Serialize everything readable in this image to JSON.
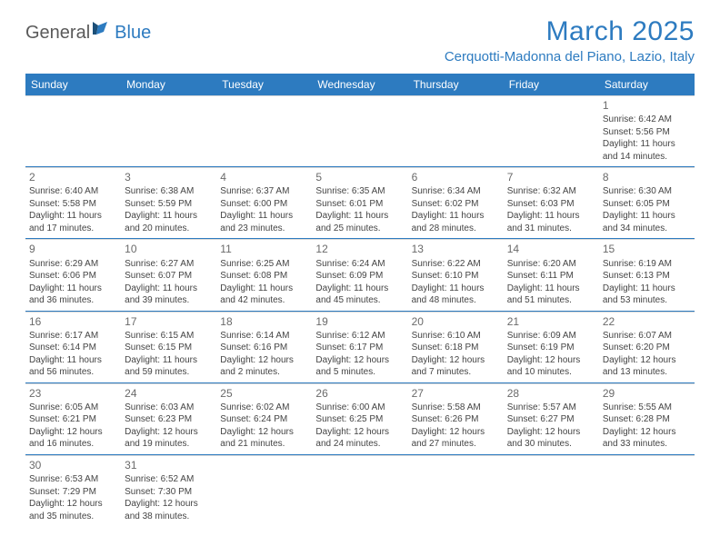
{
  "logo": {
    "part1": "General",
    "part2": "Blue"
  },
  "title": "March 2025",
  "location": "Cerquotti-Madonna del Piano, Lazio, Italy",
  "colors": {
    "brand": "#2d7bc0",
    "text": "#444444",
    "headerBg": "#2d7bc0",
    "headerText": "#ffffff",
    "cellBorder": "#d8d8d8"
  },
  "dayNames": [
    "Sunday",
    "Monday",
    "Tuesday",
    "Wednesday",
    "Thursday",
    "Friday",
    "Saturday"
  ],
  "weeks": [
    [
      null,
      null,
      null,
      null,
      null,
      null,
      {
        "n": "1",
        "sr": "Sunrise: 6:42 AM",
        "ss": "Sunset: 5:56 PM",
        "d1": "Daylight: 11 hours",
        "d2": "and 14 minutes."
      }
    ],
    [
      {
        "n": "2",
        "sr": "Sunrise: 6:40 AM",
        "ss": "Sunset: 5:58 PM",
        "d1": "Daylight: 11 hours",
        "d2": "and 17 minutes."
      },
      {
        "n": "3",
        "sr": "Sunrise: 6:38 AM",
        "ss": "Sunset: 5:59 PM",
        "d1": "Daylight: 11 hours",
        "d2": "and 20 minutes."
      },
      {
        "n": "4",
        "sr": "Sunrise: 6:37 AM",
        "ss": "Sunset: 6:00 PM",
        "d1": "Daylight: 11 hours",
        "d2": "and 23 minutes."
      },
      {
        "n": "5",
        "sr": "Sunrise: 6:35 AM",
        "ss": "Sunset: 6:01 PM",
        "d1": "Daylight: 11 hours",
        "d2": "and 25 minutes."
      },
      {
        "n": "6",
        "sr": "Sunrise: 6:34 AM",
        "ss": "Sunset: 6:02 PM",
        "d1": "Daylight: 11 hours",
        "d2": "and 28 minutes."
      },
      {
        "n": "7",
        "sr": "Sunrise: 6:32 AM",
        "ss": "Sunset: 6:03 PM",
        "d1": "Daylight: 11 hours",
        "d2": "and 31 minutes."
      },
      {
        "n": "8",
        "sr": "Sunrise: 6:30 AM",
        "ss": "Sunset: 6:05 PM",
        "d1": "Daylight: 11 hours",
        "d2": "and 34 minutes."
      }
    ],
    [
      {
        "n": "9",
        "sr": "Sunrise: 6:29 AM",
        "ss": "Sunset: 6:06 PM",
        "d1": "Daylight: 11 hours",
        "d2": "and 36 minutes."
      },
      {
        "n": "10",
        "sr": "Sunrise: 6:27 AM",
        "ss": "Sunset: 6:07 PM",
        "d1": "Daylight: 11 hours",
        "d2": "and 39 minutes."
      },
      {
        "n": "11",
        "sr": "Sunrise: 6:25 AM",
        "ss": "Sunset: 6:08 PM",
        "d1": "Daylight: 11 hours",
        "d2": "and 42 minutes."
      },
      {
        "n": "12",
        "sr": "Sunrise: 6:24 AM",
        "ss": "Sunset: 6:09 PM",
        "d1": "Daylight: 11 hours",
        "d2": "and 45 minutes."
      },
      {
        "n": "13",
        "sr": "Sunrise: 6:22 AM",
        "ss": "Sunset: 6:10 PM",
        "d1": "Daylight: 11 hours",
        "d2": "and 48 minutes."
      },
      {
        "n": "14",
        "sr": "Sunrise: 6:20 AM",
        "ss": "Sunset: 6:11 PM",
        "d1": "Daylight: 11 hours",
        "d2": "and 51 minutes."
      },
      {
        "n": "15",
        "sr": "Sunrise: 6:19 AM",
        "ss": "Sunset: 6:13 PM",
        "d1": "Daylight: 11 hours",
        "d2": "and 53 minutes."
      }
    ],
    [
      {
        "n": "16",
        "sr": "Sunrise: 6:17 AM",
        "ss": "Sunset: 6:14 PM",
        "d1": "Daylight: 11 hours",
        "d2": "and 56 minutes."
      },
      {
        "n": "17",
        "sr": "Sunrise: 6:15 AM",
        "ss": "Sunset: 6:15 PM",
        "d1": "Daylight: 11 hours",
        "d2": "and 59 minutes."
      },
      {
        "n": "18",
        "sr": "Sunrise: 6:14 AM",
        "ss": "Sunset: 6:16 PM",
        "d1": "Daylight: 12 hours",
        "d2": "and 2 minutes."
      },
      {
        "n": "19",
        "sr": "Sunrise: 6:12 AM",
        "ss": "Sunset: 6:17 PM",
        "d1": "Daylight: 12 hours",
        "d2": "and 5 minutes."
      },
      {
        "n": "20",
        "sr": "Sunrise: 6:10 AM",
        "ss": "Sunset: 6:18 PM",
        "d1": "Daylight: 12 hours",
        "d2": "and 7 minutes."
      },
      {
        "n": "21",
        "sr": "Sunrise: 6:09 AM",
        "ss": "Sunset: 6:19 PM",
        "d1": "Daylight: 12 hours",
        "d2": "and 10 minutes."
      },
      {
        "n": "22",
        "sr": "Sunrise: 6:07 AM",
        "ss": "Sunset: 6:20 PM",
        "d1": "Daylight: 12 hours",
        "d2": "and 13 minutes."
      }
    ],
    [
      {
        "n": "23",
        "sr": "Sunrise: 6:05 AM",
        "ss": "Sunset: 6:21 PM",
        "d1": "Daylight: 12 hours",
        "d2": "and 16 minutes."
      },
      {
        "n": "24",
        "sr": "Sunrise: 6:03 AM",
        "ss": "Sunset: 6:23 PM",
        "d1": "Daylight: 12 hours",
        "d2": "and 19 minutes."
      },
      {
        "n": "25",
        "sr": "Sunrise: 6:02 AM",
        "ss": "Sunset: 6:24 PM",
        "d1": "Daylight: 12 hours",
        "d2": "and 21 minutes."
      },
      {
        "n": "26",
        "sr": "Sunrise: 6:00 AM",
        "ss": "Sunset: 6:25 PM",
        "d1": "Daylight: 12 hours",
        "d2": "and 24 minutes."
      },
      {
        "n": "27",
        "sr": "Sunrise: 5:58 AM",
        "ss": "Sunset: 6:26 PM",
        "d1": "Daylight: 12 hours",
        "d2": "and 27 minutes."
      },
      {
        "n": "28",
        "sr": "Sunrise: 5:57 AM",
        "ss": "Sunset: 6:27 PM",
        "d1": "Daylight: 12 hours",
        "d2": "and 30 minutes."
      },
      {
        "n": "29",
        "sr": "Sunrise: 5:55 AM",
        "ss": "Sunset: 6:28 PM",
        "d1": "Daylight: 12 hours",
        "d2": "and 33 minutes."
      }
    ],
    [
      {
        "n": "30",
        "sr": "Sunrise: 6:53 AM",
        "ss": "Sunset: 7:29 PM",
        "d1": "Daylight: 12 hours",
        "d2": "and 35 minutes."
      },
      {
        "n": "31",
        "sr": "Sunrise: 6:52 AM",
        "ss": "Sunset: 7:30 PM",
        "d1": "Daylight: 12 hours",
        "d2": "and 38 minutes."
      },
      null,
      null,
      null,
      null,
      null
    ]
  ]
}
